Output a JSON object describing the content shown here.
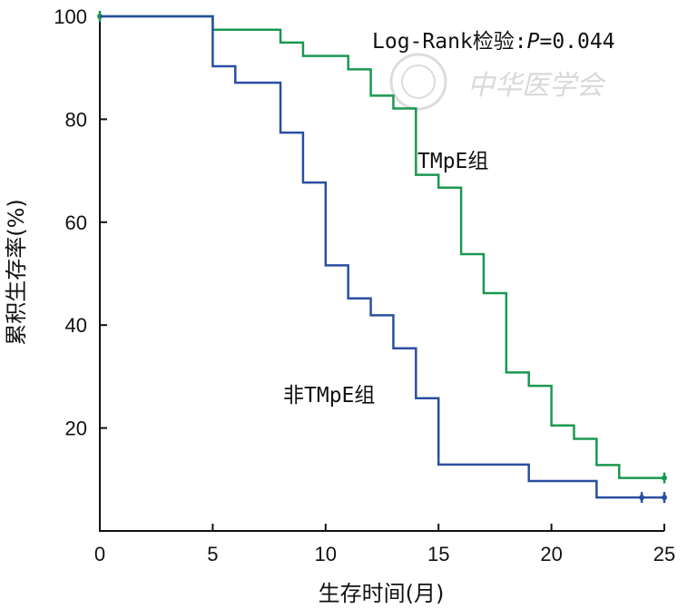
{
  "chart_data": {
    "type": "line",
    "step": true,
    "xlabel": "生存时间(月)",
    "ylabel": "累积生存率(%)",
    "xlim": [
      0,
      25
    ],
    "ylim": [
      0,
      100
    ],
    "xticks": [
      "0",
      "5",
      "10",
      "15",
      "20",
      "25"
    ],
    "yticks": [
      "20",
      "40",
      "60",
      "80",
      "100"
    ],
    "grid": false,
    "legend": "none",
    "annotations": {
      "test": "Log-Rank检验:",
      "p_label": "P",
      "p_value": "=0.044",
      "group1_label": "TMpE组",
      "group2_label": "非TMpE组"
    },
    "watermark": "中华医学会",
    "series": [
      {
        "name": "TMpE组",
        "color": "#1a9850",
        "x": [
          0,
          5,
          8,
          9,
          11,
          12,
          13,
          14,
          15,
          16,
          17,
          18,
          19,
          20,
          21,
          22,
          23,
          25
        ],
        "y": [
          100,
          97.4,
          94.9,
          92.3,
          89.7,
          84.6,
          82.1,
          69.2,
          66.7,
          53.8,
          46.2,
          30.8,
          28.2,
          20.5,
          17.9,
          12.8,
          10.3,
          10.3
        ],
        "censored": [
          [
            0,
            100
          ],
          [
            25,
            10.3
          ]
        ]
      },
      {
        "name": "非TMpE组",
        "color": "#2a4fa0",
        "x": [
          0,
          5,
          6,
          8,
          9,
          10,
          11,
          12,
          13,
          14,
          15,
          19,
          22,
          25
        ],
        "y": [
          100,
          90.3,
          87.1,
          77.4,
          67.7,
          51.6,
          45.2,
          41.9,
          35.5,
          25.8,
          12.9,
          9.7,
          6.5,
          6.5
        ],
        "censored": [
          [
            24,
            6.5
          ],
          [
            25,
            6.5
          ]
        ]
      }
    ]
  }
}
